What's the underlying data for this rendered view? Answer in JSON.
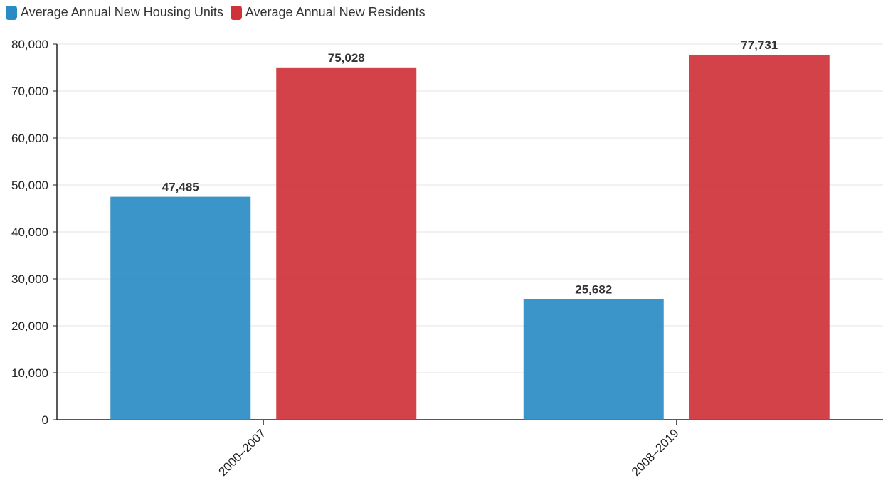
{
  "chart_data": {
    "type": "bar",
    "categories": [
      "2000–2007",
      "2008–2019"
    ],
    "series": [
      {
        "name": "Average Annual New Housing Units",
        "color": "#2b8cc4",
        "values": [
          47485,
          25682
        ],
        "labels": [
          "47,485",
          "25,682"
        ]
      },
      {
        "name": "Average Annual New Residents",
        "color": "#d0323a",
        "values": [
          75028,
          77731
        ],
        "labels": [
          "75,028",
          "77,731"
        ]
      }
    ],
    "ylim": [
      0,
      80000
    ],
    "yticks": [
      0,
      10000,
      20000,
      30000,
      40000,
      50000,
      60000,
      70000,
      80000
    ],
    "ytick_labels": [
      "0",
      "10,000",
      "20,000",
      "30,000",
      "40,000",
      "50,000",
      "60,000",
      "70,000",
      "80,000"
    ],
    "grid": true,
    "legend_position": "top-left",
    "xlabel": "",
    "ylabel": "",
    "title": ""
  }
}
